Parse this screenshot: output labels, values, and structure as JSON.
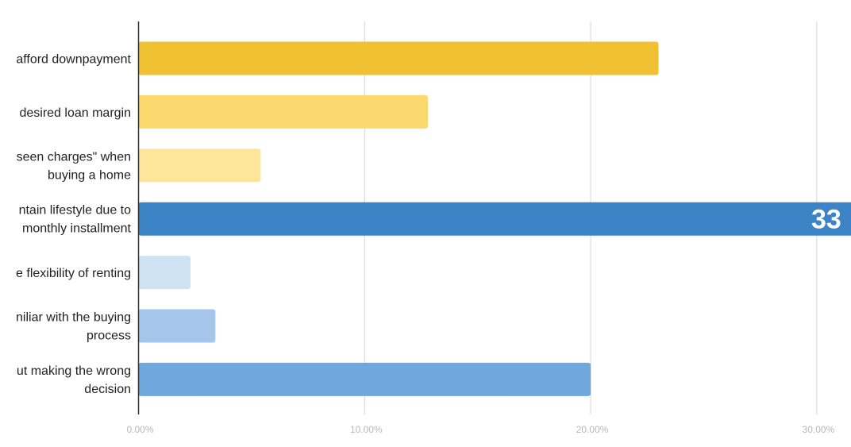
{
  "chart_data": {
    "type": "bar",
    "orientation": "horizontal",
    "title": "",
    "xlabel": "",
    "ylabel": "",
    "xlim": [
      0,
      30
    ],
    "grid": true,
    "x_ticks": [
      {
        "value": 0,
        "label": "0.00%"
      },
      {
        "value": 10,
        "label": "10.00%"
      },
      {
        "value": 20,
        "label": "20.00%"
      },
      {
        "value": 30,
        "label": "30.00%"
      }
    ],
    "categories": [
      {
        "lines": [
          "afford downpayment"
        ],
        "value": 23.0,
        "color": "#f0c233"
      },
      {
        "lines": [
          "desired loan margin"
        ],
        "value": 12.8,
        "color": "#fcd96e"
      },
      {
        "lines": [
          "seen charges\" when",
          "buying a home"
        ],
        "value": 5.4,
        "color": "#fde69a"
      },
      {
        "lines": [
          "ntain lifestyle due to",
          "monthly installment"
        ],
        "value": 33.0,
        "color": "#3d84c6",
        "value_label": "33"
      },
      {
        "lines": [
          "e flexibility of renting"
        ],
        "value": 2.3,
        "color": "#cfe2f3"
      },
      {
        "lines": [
          "niliar with the buying",
          "process"
        ],
        "value": 3.4,
        "color": "#a3c6ea"
      },
      {
        "lines": [
          "ut making the wrong",
          "decision"
        ],
        "value": 20.0,
        "color": "#6fa8dc"
      }
    ]
  }
}
